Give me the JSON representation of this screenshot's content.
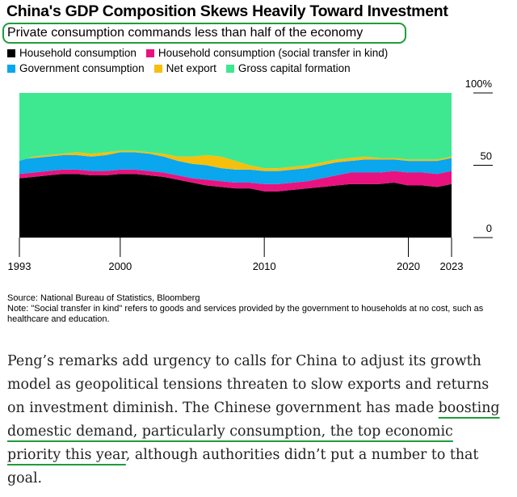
{
  "header": {
    "title": "China's GDP Composition Skews Heavily Toward Investment",
    "subtitle": "Private consumption commands less than half of the economy"
  },
  "legend": {
    "household": "Household consumption",
    "social": "Household consumption (social transfer in kind)",
    "government": "Government consumption",
    "net_export": "Net export",
    "gcf": "Gross capital formation"
  },
  "colors": {
    "household": "#000000",
    "social": "#e8137f",
    "government": "#0aa6ee",
    "net_export": "#f5bf0c",
    "gcf": "#3ee890",
    "highlight": "#1f9d3c"
  },
  "chart_data": {
    "type": "area",
    "stacked": true,
    "x": [
      1993,
      1994,
      1995,
      1996,
      1997,
      1998,
      1999,
      2000,
      2001,
      2002,
      2003,
      2004,
      2005,
      2006,
      2007,
      2008,
      2009,
      2010,
      2011,
      2012,
      2013,
      2014,
      2015,
      2016,
      2017,
      2018,
      2019,
      2020,
      2021,
      2022,
      2023
    ],
    "series": [
      {
        "name": "Household consumption",
        "key": "household",
        "values": [
          41,
          42,
          43,
          44,
          44,
          43,
          43,
          44,
          44,
          43,
          42,
          40,
          38,
          36,
          35,
          34,
          34,
          32,
          32,
          33,
          34,
          35,
          36,
          37,
          37,
          37,
          38,
          36,
          36,
          35,
          37
        ]
      },
      {
        "name": "Household consumption (social transfer in kind)",
        "key": "social",
        "values": [
          3,
          3,
          3,
          3,
          3,
          3,
          3,
          3,
          3,
          3,
          3,
          3,
          3,
          4,
          4,
          4,
          4,
          5,
          5,
          5,
          5,
          6,
          7,
          8,
          8,
          8,
          8,
          9,
          9,
          9,
          9
        ]
      },
      {
        "name": "Government consumption",
        "key": "government",
        "values": [
          10,
          10,
          10,
          10,
          10,
          10,
          11,
          12,
          12,
          12,
          11,
          10,
          10,
          10,
          9,
          9,
          9,
          9,
          9,
          9,
          9,
          9,
          9,
          8,
          9,
          9,
          8,
          8,
          8,
          9,
          9
        ]
      },
      {
        "name": "Net export",
        "key": "net_export",
        "values": [
          -1,
          1,
          1,
          1,
          2,
          2,
          2,
          1,
          1,
          1,
          2,
          3,
          5,
          7,
          8,
          6,
          3,
          2,
          2,
          2,
          2,
          2,
          2,
          2,
          2,
          1,
          1,
          1,
          1,
          1,
          1
        ]
      },
      {
        "name": "Gross capital formation",
        "key": "gcf",
        "values": [
          47,
          44,
          43,
          42,
          41,
          42,
          41,
          40,
          40,
          41,
          42,
          44,
          44,
          43,
          44,
          47,
          50,
          52,
          52,
          51,
          50,
          48,
          46,
          45,
          44,
          45,
          45,
          46,
          46,
          46,
          44
        ]
      }
    ],
    "x_ticks": [
      "1993",
      "2000",
      "2010",
      "2020",
      "2023"
    ],
    "y_ticks": [
      "0",
      "50",
      "100%"
    ],
    "ylim": [
      0,
      100
    ],
    "grid": false,
    "legend_position": "top"
  },
  "footer": {
    "source": "Source: National Bureau of Statistics, Bloomberg",
    "note": "Note: \"Social transfer in kind\" refers to goods and services provided by the government to households at no cost, such as healthcare and education."
  },
  "article": {
    "text_1": "Peng’s remarks add urgency to calls for China to adjust its growth model as geopolitical tensions threaten to slow exports and returns on investment diminish. The Chinese government has made ",
    "highlight": "boosting domestic demand, particularly consumption, the top economic priority this year",
    "text_2": ", although authorities didn’t put a number to that goal."
  }
}
